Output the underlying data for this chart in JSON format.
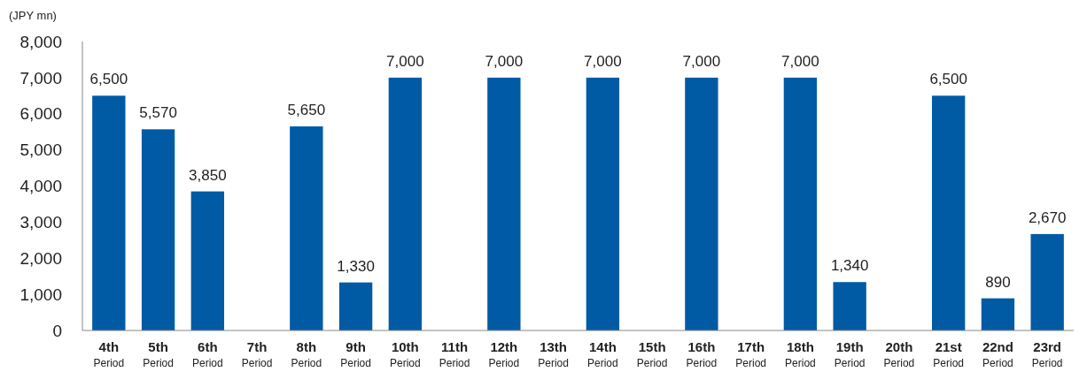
{
  "chart_data": {
    "type": "bar",
    "ylabel": "(JPY mn)",
    "categories": [
      "4th\nPeriod",
      "5th\nPeriod",
      "6th\nPeriod",
      "7th\nPeriod",
      "8th\nPeriod",
      "9th\nPeriod",
      "10th\nPeriod",
      "11th\nPeriod",
      "12th\nPeriod",
      "13th\nPeriod",
      "14th\nPeriod",
      "15th\nPeriod",
      "16th\nPeriod",
      "17th\nPeriod",
      "18th\nPeriod",
      "19th\nPeriod",
      "20th\nPeriod",
      "21st\nPeriod",
      "22nd\nPeriod",
      "23rd\nPeriod"
    ],
    "values": [
      6500,
      5570,
      3850,
      null,
      5650,
      1330,
      7000,
      null,
      7000,
      null,
      7000,
      null,
      7000,
      null,
      7000,
      1340,
      null,
      6500,
      890,
      2670
    ],
    "value_labels": [
      "6,500",
      "5,570",
      "3,850",
      null,
      "5,650",
      "1,330",
      "7,000",
      null,
      "7,000",
      null,
      "7,000",
      null,
      "7,000",
      null,
      "7,000",
      "1,340",
      null,
      "6,500",
      "890",
      "2,670"
    ],
    "color": "#005ba4",
    "ylim": [
      0,
      8000
    ],
    "yticks": [
      {
        "value": 0,
        "label": "0"
      },
      {
        "value": 1000,
        "label": "1,000"
      },
      {
        "value": 2000,
        "label": "2,000"
      },
      {
        "value": 3000,
        "label": "3,000"
      },
      {
        "value": 4000,
        "label": "4,000"
      },
      {
        "value": 5000,
        "label": "5,000"
      },
      {
        "value": 6000,
        "label": "6,000"
      },
      {
        "value": 7000,
        "label": "7,000"
      },
      {
        "value": 8000,
        "label": "8,000"
      }
    ],
    "grid": false
  }
}
